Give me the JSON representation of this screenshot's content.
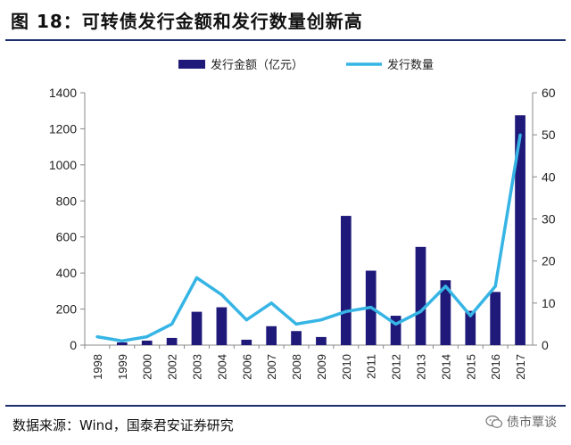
{
  "figure": {
    "title": "图 18：可转债发行金额和发行数量创新高",
    "source": "数据来源：Wind，国泰君安证券研究",
    "watermark": "债市覃谈"
  },
  "chart_data": {
    "type": "bar",
    "categories": [
      "1998",
      "1999",
      "2000",
      "2002",
      "2003",
      "2004",
      "2006",
      "2007",
      "2008",
      "2009",
      "2010",
      "2011",
      "2012",
      "2013",
      "2014",
      "2015",
      "2016",
      "2017"
    ],
    "series": [
      {
        "name": "发行金额（亿元）",
        "type": "bar",
        "axis": "left",
        "color": "#1f1a7a",
        "values": [
          0,
          15,
          25,
          40,
          185,
          210,
          30,
          105,
          78,
          45,
          717,
          413,
          163,
          545,
          360,
          190,
          295,
          1275
        ]
      },
      {
        "name": "发行数量",
        "type": "line",
        "axis": "right",
        "color": "#36b5e5",
        "values": [
          2,
          1,
          2,
          5,
          16,
          12,
          6,
          10,
          5,
          6,
          8,
          9,
          5,
          8,
          14,
          7,
          14,
          50
        ]
      }
    ],
    "ylim_left": [
      0,
      1400
    ],
    "yticks_left": [
      0,
      200,
      400,
      600,
      800,
      1000,
      1200,
      1400
    ],
    "ylim_right": [
      0,
      60
    ],
    "yticks_right": [
      0,
      10,
      20,
      30,
      40,
      50,
      60
    ],
    "legend": "top-center",
    "grid": false
  }
}
